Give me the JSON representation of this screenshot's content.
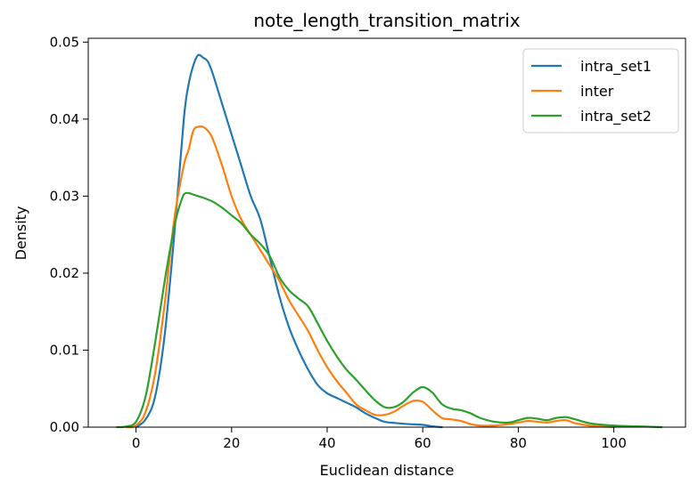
{
  "chart_data": {
    "type": "line",
    "title": "note_length_transition_matrix",
    "xlabel": "Euclidean distance",
    "ylabel": "Density",
    "xlim": [
      -10,
      115
    ],
    "ylim": [
      0,
      0.0505
    ],
    "xticks": [
      0,
      20,
      40,
      60,
      80,
      100
    ],
    "xtick_labels": [
      "0",
      "20",
      "40",
      "60",
      "80",
      "100"
    ],
    "yticks": [
      0,
      0.01,
      0.02,
      0.03,
      0.04,
      0.05
    ],
    "ytick_labels": [
      "0.00",
      "0.01",
      "0.02",
      "0.03",
      "0.04",
      "0.05"
    ],
    "grid": false,
    "legend_position": "top-right",
    "series": [
      {
        "name": "intra_set1",
        "color": "#1f77b4",
        "points": [
          [
            0,
            0
          ],
          [
            2,
            0.001
          ],
          [
            4,
            0.004
          ],
          [
            6,
            0.012
          ],
          [
            8,
            0.025
          ],
          [
            10,
            0.04
          ],
          [
            11,
            0.0445
          ],
          [
            12,
            0.047
          ],
          [
            13,
            0.0483
          ],
          [
            14,
            0.048
          ],
          [
            15,
            0.0475
          ],
          [
            16,
            0.046
          ],
          [
            18,
            0.042
          ],
          [
            20,
            0.038
          ],
          [
            22,
            0.034
          ],
          [
            24,
            0.03
          ],
          [
            26,
            0.027
          ],
          [
            28,
            0.022
          ],
          [
            30,
            0.017
          ],
          [
            32,
            0.013
          ],
          [
            34,
            0.01
          ],
          [
            36,
            0.0075
          ],
          [
            38,
            0.0055
          ],
          [
            40,
            0.0044
          ],
          [
            42,
            0.0038
          ],
          [
            44,
            0.0032
          ],
          [
            46,
            0.0026
          ],
          [
            48,
            0.0018
          ],
          [
            50,
            0.0012
          ],
          [
            52,
            0.0007
          ],
          [
            55,
            0.0005
          ],
          [
            57,
            0.0004
          ],
          [
            60,
            0.0003
          ],
          [
            62,
            0.0001
          ],
          [
            64,
            0
          ]
        ]
      },
      {
        "name": "inter",
        "color": "#ff7f0e",
        "points": [
          [
            -2,
            0
          ],
          [
            0,
            0.0002
          ],
          [
            2,
            0.002
          ],
          [
            4,
            0.007
          ],
          [
            6,
            0.016
          ],
          [
            8,
            0.027
          ],
          [
            10,
            0.034
          ],
          [
            11,
            0.036
          ],
          [
            12,
            0.0385
          ],
          [
            13,
            0.039
          ],
          [
            14,
            0.039
          ],
          [
            15,
            0.0385
          ],
          [
            16,
            0.0375
          ],
          [
            18,
            0.034
          ],
          [
            20,
            0.03
          ],
          [
            22,
            0.027
          ],
          [
            24,
            0.025
          ],
          [
            26,
            0.023
          ],
          [
            28,
            0.021
          ],
          [
            30,
            0.019
          ],
          [
            32,
            0.0165
          ],
          [
            34,
            0.0145
          ],
          [
            36,
            0.0125
          ],
          [
            38,
            0.01
          ],
          [
            40,
            0.0078
          ],
          [
            42,
            0.006
          ],
          [
            44,
            0.0045
          ],
          [
            46,
            0.003
          ],
          [
            48,
            0.0022
          ],
          [
            50,
            0.0016
          ],
          [
            52,
            0.0016
          ],
          [
            54,
            0.002
          ],
          [
            56,
            0.0028
          ],
          [
            58,
            0.0034
          ],
          [
            60,
            0.0033
          ],
          [
            62,
            0.0022
          ],
          [
            64,
            0.0012
          ],
          [
            66,
            0.001
          ],
          [
            68,
            0.0008
          ],
          [
            70,
            0.0004
          ],
          [
            72,
            0.0002
          ],
          [
            75,
            0.0002
          ],
          [
            78,
            0.0004
          ],
          [
            80,
            0.0006
          ],
          [
            82,
            0.0008
          ],
          [
            84,
            0.0007
          ],
          [
            86,
            0.0006
          ],
          [
            88,
            0.0008
          ],
          [
            90,
            0.0009
          ],
          [
            92,
            0.0005
          ],
          [
            95,
            0.0002
          ],
          [
            100,
            0
          ]
        ]
      },
      {
        "name": "intra_set2",
        "color": "#2ca02c",
        "points": [
          [
            -4,
            0
          ],
          [
            -2,
            0.0001
          ],
          [
            0,
            0.0007
          ],
          [
            2,
            0.004
          ],
          [
            4,
            0.011
          ],
          [
            6,
            0.019
          ],
          [
            8,
            0.026
          ],
          [
            9,
            0.0285
          ],
          [
            10,
            0.0302
          ],
          [
            11,
            0.0304
          ],
          [
            12,
            0.0302
          ],
          [
            13,
            0.03
          ],
          [
            14,
            0.0298
          ],
          [
            16,
            0.0293
          ],
          [
            18,
            0.0285
          ],
          [
            20,
            0.0275
          ],
          [
            22,
            0.0265
          ],
          [
            24,
            0.025
          ],
          [
            26,
            0.0238
          ],
          [
            28,
            0.0222
          ],
          [
            30,
            0.0195
          ],
          [
            32,
            0.0178
          ],
          [
            34,
            0.0167
          ],
          [
            36,
            0.0157
          ],
          [
            38,
            0.0135
          ],
          [
            40,
            0.0112
          ],
          [
            42,
            0.0092
          ],
          [
            44,
            0.0075
          ],
          [
            46,
            0.0062
          ],
          [
            48,
            0.0048
          ],
          [
            50,
            0.0035
          ],
          [
            52,
            0.0026
          ],
          [
            54,
            0.0026
          ],
          [
            56,
            0.0033
          ],
          [
            58,
            0.0045
          ],
          [
            60,
            0.0052
          ],
          [
            62,
            0.0045
          ],
          [
            64,
            0.003
          ],
          [
            66,
            0.0024
          ],
          [
            68,
            0.0022
          ],
          [
            70,
            0.0018
          ],
          [
            72,
            0.0012
          ],
          [
            75,
            0.0007
          ],
          [
            78,
            0.0006
          ],
          [
            80,
            0.0009
          ],
          [
            82,
            0.0012
          ],
          [
            84,
            0.0011
          ],
          [
            86,
            0.0009
          ],
          [
            88,
            0.0012
          ],
          [
            90,
            0.0013
          ],
          [
            92,
            0.001
          ],
          [
            95,
            0.0005
          ],
          [
            100,
            0.0002
          ],
          [
            105,
            0.0001
          ],
          [
            110,
            0
          ]
        ]
      }
    ]
  }
}
